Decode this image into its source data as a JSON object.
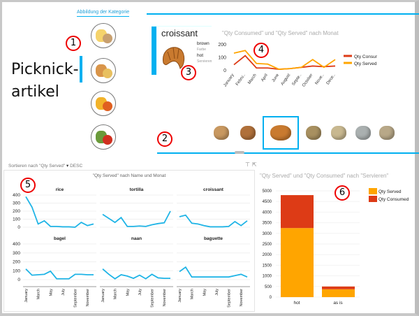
{
  "header": {
    "category_label": "Abbildung der Kategorie",
    "title": "Picknick-artikel"
  },
  "categories": [
    {
      "name": "drinks-icon"
    },
    {
      "name": "bread-icon"
    },
    {
      "name": "fruit-icon"
    },
    {
      "name": "vegetables-icon"
    }
  ],
  "card": {
    "name": "croissant",
    "color": "brown",
    "color_label": "Farbe",
    "serving": "hot",
    "serving_label": "Servieren"
  },
  "callouts": [
    "1",
    "2",
    "3",
    "4",
    "5",
    "6"
  ],
  "thumbnails": [
    "bread-roll",
    "baguette",
    "croissant",
    "bagel",
    "naan",
    "rice",
    "tortilla"
  ],
  "selected_thumbnail": 2,
  "sort": {
    "label": "Sortieren nach \"Qty Served\"",
    "arrow": "▾",
    "order": "DESC"
  },
  "colors": {
    "accent": "#00b0f0",
    "served": "#ffa500",
    "consumed": "#dd3b16",
    "line": "#1fb4e6"
  },
  "chart_data": [
    {
      "type": "line",
      "title": "\"Qty Consumed\" und \"Qty Served\" nach Monat",
      "categories": [
        "January",
        "Febru..",
        "March",
        "April",
        "June",
        "August",
        "Septe..",
        "October",
        "Nove..",
        "Dece.."
      ],
      "ylim": [
        0,
        200
      ],
      "yticks": [
        "200",
        "100",
        "0"
      ],
      "series": [
        {
          "name": "Qty Consumed",
          "values": [
            40,
            110,
            15,
            15,
            5,
            10,
            20,
            30,
            25,
            30
          ]
        },
        {
          "name": "Qty Served",
          "values": [
            130,
            150,
            50,
            45,
            5,
            10,
            20,
            80,
            20,
            80
          ]
        }
      ]
    },
    {
      "type": "line",
      "title": "\"Qty Served\" nach Name und Monat",
      "ylim": [
        0,
        400
      ],
      "yticks": [
        "400",
        "300",
        "200",
        "100",
        "0"
      ],
      "xticks": [
        "January",
        "March",
        "May",
        "July",
        "September",
        "November"
      ],
      "panels": [
        {
          "name": "rice",
          "values": [
            380,
            250,
            40,
            80,
            10,
            10,
            5,
            5,
            0,
            60,
            20,
            40
          ]
        },
        {
          "name": "tortilla",
          "values": [
            160,
            110,
            60,
            120,
            10,
            10,
            15,
            10,
            30,
            45,
            55,
            200
          ]
        },
        {
          "name": "croissant",
          "values": [
            130,
            150,
            50,
            40,
            20,
            5,
            5,
            5,
            10,
            70,
            20,
            80
          ]
        },
        {
          "name": "bagel",
          "values": [
            120,
            50,
            55,
            60,
            95,
            10,
            10,
            10,
            60,
            60,
            55,
            55
          ]
        },
        {
          "name": "naan",
          "values": [
            120,
            60,
            10,
            55,
            40,
            15,
            50,
            10,
            60,
            20,
            15,
            15
          ]
        },
        {
          "name": "baguette",
          "values": [
            90,
            140,
            30,
            30,
            30,
            30,
            30,
            30,
            30,
            45,
            60,
            30
          ]
        }
      ]
    },
    {
      "type": "bar",
      "stacked": true,
      "title": "\"Qty Served\" und \"Qty Consumed\" nach \"Servieren\"",
      "categories": [
        "hot",
        "as is"
      ],
      "ylim": [
        0,
        5000
      ],
      "yticks": [
        "5000",
        "4500",
        "4000",
        "3500",
        "3000",
        "2500",
        "2000",
        "1500",
        "1000",
        "500",
        "0"
      ],
      "series": [
        {
          "name": "Qty Served",
          "values": [
            3250,
            370
          ]
        },
        {
          "name": "Qty Consumed",
          "values": [
            1550,
            130
          ]
        }
      ]
    }
  ]
}
